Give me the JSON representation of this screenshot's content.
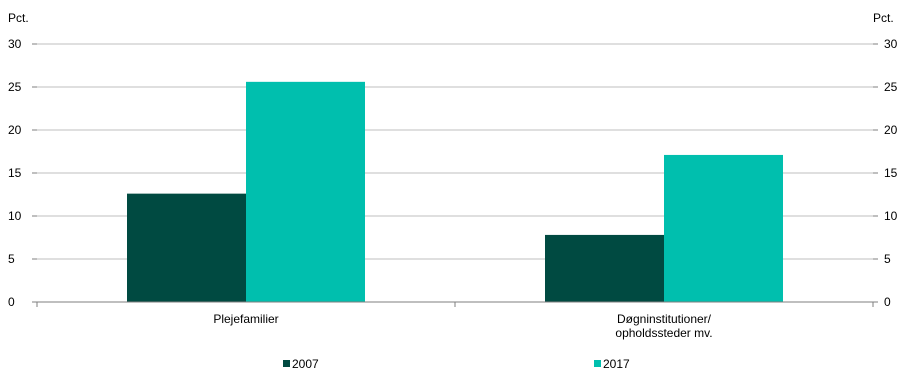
{
  "chart_data": {
    "type": "bar",
    "unit_left": "Pct.",
    "unit_right": "Pct.",
    "categories": [
      [
        "Plejefamilier"
      ],
      [
        "Døgninstitutioner/",
        "opholdssteder mv."
      ]
    ],
    "series": [
      {
        "name": "2007",
        "values": [
          12.6,
          7.8
        ]
      },
      {
        "name": "2017",
        "values": [
          25.6,
          17.1
        ]
      }
    ],
    "ylim": [
      0,
      30
    ],
    "yticks": [
      0,
      5,
      10,
      15,
      20,
      25,
      30
    ],
    "grid": true,
    "legend": "bottom",
    "colors": {
      "2007": "#004a41",
      "2017": "#00bfae"
    }
  }
}
